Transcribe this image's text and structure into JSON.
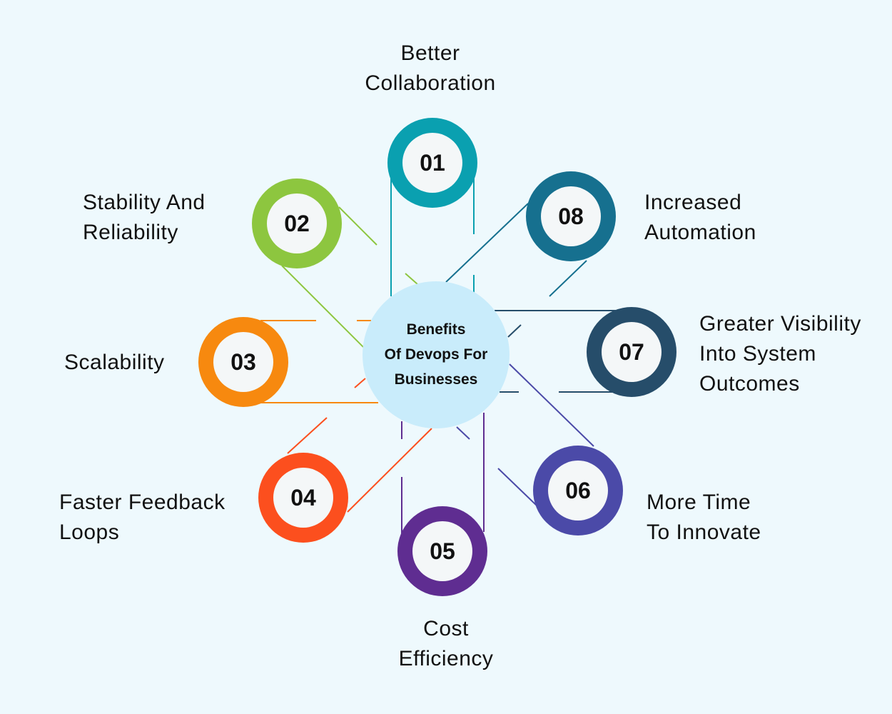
{
  "center": {
    "title_lines": [
      "Benefits",
      "Of Devops For",
      "Businesses"
    ],
    "color": "#c9ecfb"
  },
  "benefits": [
    {
      "number": "01",
      "lines": [
        "Better",
        "Collaboration"
      ],
      "color": "#0aa0b0"
    },
    {
      "number": "02",
      "lines": [
        "Stability And",
        "Reliability"
      ],
      "color": "#8dc63f"
    },
    {
      "number": "03",
      "lines": [
        "Scalability"
      ],
      "color": "#f7890f"
    },
    {
      "number": "04",
      "lines": [
        "Faster Feedback",
        "Loops"
      ],
      "color": "#fc4f1e"
    },
    {
      "number": "05",
      "lines": [
        "Cost",
        "Efficiency"
      ],
      "color": "#5f2d91"
    },
    {
      "number": "06",
      "lines": [
        "More Time",
        "To Innovate"
      ],
      "color": "#4b4aa8"
    },
    {
      "number": "07",
      "lines": [
        "Greater Visibility",
        "Into System",
        "Outcomes"
      ],
      "color": "#264d6a"
    },
    {
      "number": "08",
      "lines": [
        "Increased",
        "Automation"
      ],
      "color": "#16708f"
    }
  ]
}
